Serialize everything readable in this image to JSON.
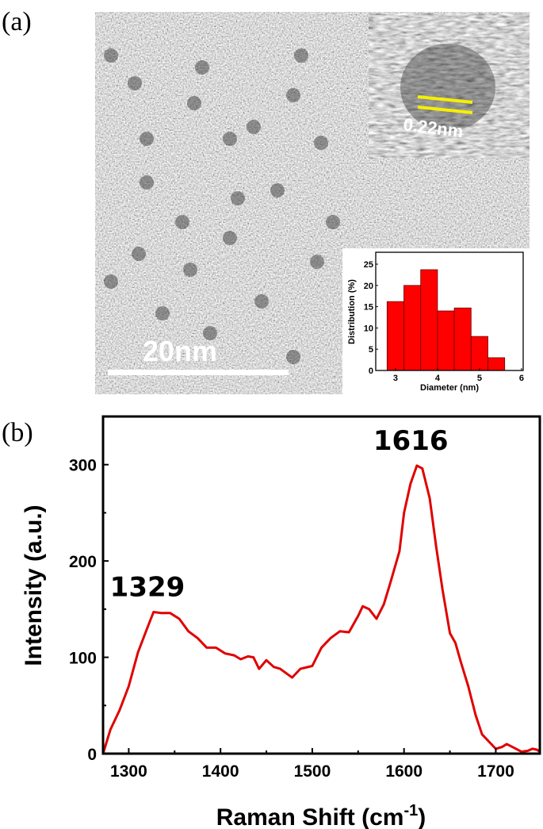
{
  "panel_a": {
    "label": "(a)",
    "scale_bar_label": "20nm",
    "lattice_label": "0.22nm",
    "lattice_line_color": "#f5f000"
  },
  "panel_b": {
    "label": "(b)"
  },
  "chart_data": [
    {
      "type": "bar",
      "name_role": "inset histogram",
      "xlabel": "Diameter (nm)",
      "ylabel": "Distribution (%)",
      "xlim": [
        2.53,
        6.04
      ],
      "ylim": [
        0,
        27.8
      ],
      "xticks": [
        3,
        4,
        5,
        6
      ],
      "yticks": [
        0,
        5,
        10,
        15,
        20,
        25
      ],
      "bins": [
        [
          2.8,
          3.2
        ],
        [
          3.2,
          3.6
        ],
        [
          3.6,
          4.0
        ],
        [
          4.0,
          4.4
        ],
        [
          4.4,
          4.8
        ],
        [
          4.8,
          5.2
        ],
        [
          5.2,
          5.6
        ]
      ],
      "values": [
        16.2,
        20.0,
        23.7,
        14.0,
        14.7,
        8.0,
        3.0
      ],
      "bar_color": "#ff0000",
      "grid": false
    },
    {
      "type": "line",
      "xlabel": "Raman Shift (cm",
      "xlabel_sup": "-1",
      "xlabel_end": ")",
      "ylabel": "Intensity (a.u.)",
      "xlim": [
        1272,
        1748
      ],
      "ylim": [
        0,
        350
      ],
      "xticks": [
        1300,
        1400,
        1500,
        1600,
        1700
      ],
      "yticks": [
        0,
        100,
        200,
        300
      ],
      "grid": false,
      "line_color": "#e00000",
      "annotations": [
        {
          "text": "1329",
          "x": 1329,
          "y": 147
        },
        {
          "text": "1616",
          "x": 1616,
          "y": 299
        }
      ],
      "x": [
        1272,
        1280,
        1290,
        1300,
        1310,
        1320,
        1327,
        1335,
        1345,
        1355,
        1365,
        1375,
        1385,
        1395,
        1405,
        1415,
        1422,
        1430,
        1436,
        1442,
        1450,
        1458,
        1465,
        1478,
        1487,
        1500,
        1510,
        1520,
        1530,
        1540,
        1550,
        1555,
        1562,
        1570,
        1578,
        1585,
        1595,
        1600,
        1607,
        1614,
        1620,
        1628,
        1635,
        1642,
        1650,
        1656,
        1662,
        1670,
        1678,
        1685,
        1693,
        1700,
        1707,
        1712,
        1720,
        1728,
        1735,
        1740,
        1745,
        1748
      ],
      "y": [
        0,
        25,
        45,
        70,
        105,
        130,
        147,
        146,
        146,
        140,
        127,
        120,
        110,
        110,
        104,
        102,
        98,
        101,
        100,
        88,
        97,
        90,
        88,
        79,
        88,
        91,
        110,
        120,
        127,
        126,
        143,
        153,
        150,
        140,
        155,
        177,
        210,
        250,
        280,
        299,
        296,
        265,
        215,
        170,
        125,
        115,
        95,
        70,
        40,
        20,
        12,
        5,
        7,
        10,
        6,
        2,
        3,
        5,
        4,
        2
      ]
    }
  ]
}
